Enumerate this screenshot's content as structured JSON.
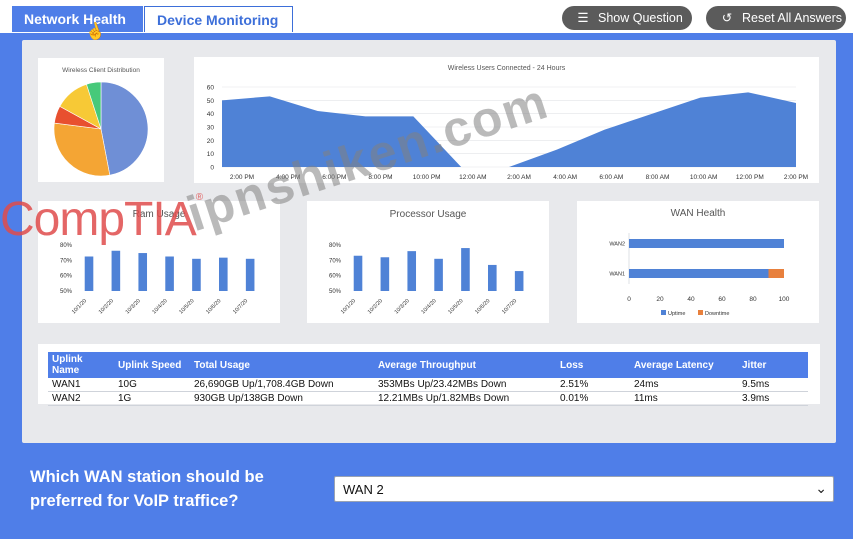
{
  "tabs": [
    {
      "label": "Network Health"
    },
    {
      "label": "Device Monitoring"
    }
  ],
  "toolbar": {
    "show_question": "Show Question",
    "reset_all": "Reset All Answers"
  },
  "pie": {
    "title": "Wireless Client Distribution",
    "chart_data": {
      "type": "pie",
      "values": [
        47,
        30,
        6,
        12,
        5
      ],
      "colors": [
        "#6f8fd6",
        "#f4a534",
        "#e8502f",
        "#f7c936",
        "#47c97a"
      ]
    }
  },
  "users_chart": {
    "title": "Wireless Users Connected - 24 Hours",
    "chart_data": {
      "type": "area",
      "categories": [
        "2:00 PM",
        "4:00 PM",
        "6:00 PM",
        "8:00 PM",
        "10:00 PM",
        "12:00 AM",
        "2:00 AM",
        "4:00 AM",
        "6:00 AM",
        "8:00 AM",
        "10:00 AM",
        "12:00 PM",
        "2:00 PM"
      ],
      "values": [
        50,
        53,
        42,
        38,
        38,
        0,
        0,
        13,
        28,
        40,
        52,
        56,
        48
      ],
      "ylim": [
        0,
        60
      ],
      "yticks": [
        "60",
        "50",
        "40",
        "30",
        "20",
        "10",
        "0"
      ],
      "color": "#4f82d6"
    }
  },
  "ram_chart": {
    "title": "Ram Usage",
    "chart_data": {
      "type": "bar",
      "categories": [
        "10/1/20",
        "10/2/20",
        "10/3/20",
        "10/4/20",
        "10/5/20",
        "10/6/20",
        "10/7/20"
      ],
      "values": [
        80,
        85,
        83,
        80,
        78,
        79,
        78
      ],
      "ylim": [
        50,
        90
      ],
      "yticks": [
        "80%",
        "70%",
        "60%",
        "50%"
      ],
      "color": "#4f82d6"
    }
  },
  "cpu_chart": {
    "title": "Processor Usage",
    "chart_data": {
      "type": "bar",
      "categories": [
        "10/1/20",
        "10/2/20",
        "10/3/20",
        "10/4/20",
        "10/5/20",
        "10/6/20",
        "10/7/20"
      ],
      "values": [
        73,
        72,
        76,
        71,
        78,
        67,
        63
      ],
      "ylim": [
        50,
        80
      ],
      "yticks": [
        "80%",
        "70%",
        "60%",
        "50%"
      ],
      "color": "#4f82d6"
    }
  },
  "wan_chart": {
    "title": "WAN Health",
    "chart_data": {
      "type": "bar",
      "orientation": "horizontal",
      "categories": [
        "WAN2",
        "WAN1"
      ],
      "series": [
        {
          "name": "Uptime",
          "values": [
            100,
            90
          ],
          "color": "#4f82d6"
        },
        {
          "name": "Downtime",
          "values": [
            0,
            10
          ],
          "color": "#e8803d"
        }
      ],
      "xlim": [
        0,
        100
      ],
      "xticks": [
        "0",
        "20",
        "40",
        "60",
        "80",
        "100"
      ]
    }
  },
  "uplink_table": {
    "headers": [
      "Uplink Name",
      "Uplink Speed",
      "Total Usage",
      "Average Throughput",
      "Loss",
      "Average Latency",
      "Jitter"
    ],
    "rows": [
      [
        "WAN1",
        "10G",
        "26,690GB Up/1,708.4GB Down",
        "353MBs Up/23.42MBs Down",
        "2.51%",
        "24ms",
        "9.5ms"
      ],
      [
        "WAN2",
        "1G",
        "930GB Up/138GB Down",
        "12.21MBs Up/1.82MBs Down",
        "0.01%",
        "11ms",
        "3.9ms"
      ]
    ]
  },
  "question": {
    "text": "Which WAN station should be preferred for VoIP traffice?",
    "selected": "WAN 2"
  },
  "watermarks": {
    "brand": "CompTIA",
    "site": "ipnshiken.com"
  }
}
